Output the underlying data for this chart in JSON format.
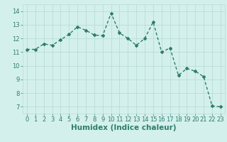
{
  "x": [
    0,
    1,
    2,
    3,
    4,
    5,
    6,
    7,
    8,
    9,
    10,
    11,
    12,
    13,
    14,
    15,
    16,
    17,
    18,
    19,
    20,
    21,
    22,
    23
  ],
  "y": [
    11.2,
    11.2,
    11.6,
    11.5,
    11.9,
    12.3,
    12.85,
    12.6,
    12.25,
    12.2,
    13.85,
    12.4,
    12.0,
    11.5,
    12.0,
    13.2,
    11.0,
    11.3,
    9.3,
    9.8,
    9.6,
    9.2,
    7.05,
    7.0
  ],
  "line_color": "#2e7d6e",
  "marker": "D",
  "marker_size": 2.0,
  "line_width": 1.0,
  "bg_color": "#d4f0ec",
  "grid_color": "#b8dcd7",
  "xlabel": "Humidex (Indice chaleur)",
  "xlabel_fontsize": 7.5,
  "tick_fontsize": 6,
  "xlim": [
    -0.5,
    23.5
  ],
  "ylim": [
    6.5,
    14.5
  ],
  "yticks": [
    7,
    8,
    9,
    10,
    11,
    12,
    13,
    14
  ],
  "xticks": [
    0,
    1,
    2,
    3,
    4,
    5,
    6,
    7,
    8,
    9,
    10,
    11,
    12,
    13,
    14,
    15,
    16,
    17,
    18,
    19,
    20,
    21,
    22,
    23
  ]
}
